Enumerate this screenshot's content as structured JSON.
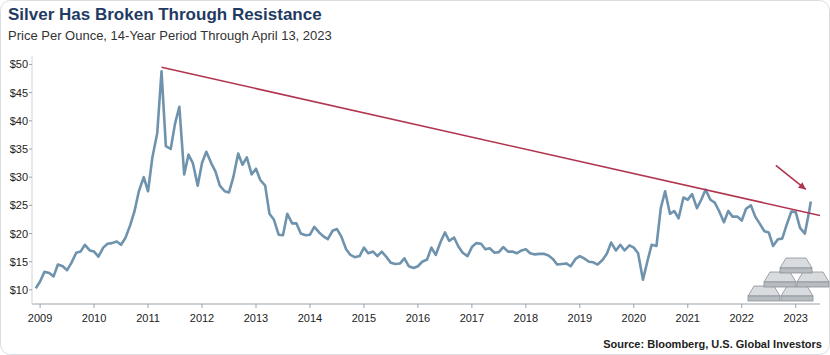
{
  "chart_data": {
    "type": "line",
    "title": "Silver Has Broken Through Resistance",
    "subtitle": "Price Per Ounce, 14-Year Period Through April 13, 2023",
    "source": "Source: Bloomberg, U.S. Global Investors",
    "color": "#6f93ad",
    "grid": false,
    "xlim": [
      2008.85,
      2023.45
    ],
    "xticks": [
      2009,
      2010,
      2011,
      2012,
      2013,
      2014,
      2015,
      2016,
      2017,
      2018,
      2019,
      2020,
      2021,
      2022,
      2023
    ],
    "ylim": [
      7.5,
      51.5
    ],
    "yticks": [
      {
        "value": 10,
        "label": "$10"
      },
      {
        "value": 15,
        "label": "$15"
      },
      {
        "value": 20,
        "label": "$20"
      },
      {
        "value": 25,
        "label": "$25"
      },
      {
        "value": 30,
        "label": "$30"
      },
      {
        "value": 35,
        "label": "$35"
      },
      {
        "value": 40,
        "label": "$40"
      },
      {
        "value": 45,
        "label": "$45"
      },
      {
        "value": 50,
        "label": "$50"
      }
    ],
    "x": [
      2008.92,
      2009,
      2009.08,
      2009.17,
      2009.25,
      2009.33,
      2009.42,
      2009.5,
      2009.58,
      2009.67,
      2009.75,
      2009.83,
      2009.92,
      2010,
      2010.08,
      2010.17,
      2010.25,
      2010.33,
      2010.42,
      2010.5,
      2010.58,
      2010.67,
      2010.75,
      2010.83,
      2010.92,
      2011,
      2011.08,
      2011.17,
      2011.25,
      2011.33,
      2011.42,
      2011.5,
      2011.58,
      2011.67,
      2011.75,
      2011.83,
      2011.92,
      2012,
      2012.08,
      2012.17,
      2012.25,
      2012.33,
      2012.42,
      2012.5,
      2012.58,
      2012.67,
      2012.75,
      2012.83,
      2012.92,
      2013,
      2013.08,
      2013.17,
      2013.25,
      2013.33,
      2013.42,
      2013.5,
      2013.58,
      2013.67,
      2013.75,
      2013.83,
      2013.92,
      2014,
      2014.08,
      2014.17,
      2014.25,
      2014.33,
      2014.42,
      2014.5,
      2014.58,
      2014.67,
      2014.75,
      2014.83,
      2014.92,
      2015,
      2015.08,
      2015.17,
      2015.25,
      2015.33,
      2015.42,
      2015.5,
      2015.58,
      2015.67,
      2015.75,
      2015.83,
      2015.92,
      2016,
      2016.08,
      2016.17,
      2016.25,
      2016.33,
      2016.42,
      2016.5,
      2016.58,
      2016.67,
      2016.75,
      2016.83,
      2016.92,
      2017,
      2017.08,
      2017.17,
      2017.25,
      2017.33,
      2017.42,
      2017.5,
      2017.58,
      2017.67,
      2017.75,
      2017.83,
      2017.92,
      2018,
      2018.08,
      2018.17,
      2018.25,
      2018.33,
      2018.42,
      2018.5,
      2018.58,
      2018.67,
      2018.75,
      2018.83,
      2018.92,
      2019,
      2019.08,
      2019.17,
      2019.25,
      2019.33,
      2019.42,
      2019.5,
      2019.58,
      2019.67,
      2019.75,
      2019.83,
      2019.92,
      2020,
      2020.08,
      2020.17,
      2020.25,
      2020.33,
      2020.42,
      2020.5,
      2020.58,
      2020.67,
      2020.75,
      2020.83,
      2020.92,
      2021,
      2021.08,
      2021.17,
      2021.25,
      2021.33,
      2021.42,
      2021.5,
      2021.58,
      2021.67,
      2021.75,
      2021.83,
      2021.92,
      2022,
      2022.08,
      2022.17,
      2022.25,
      2022.33,
      2022.42,
      2022.5,
      2022.58,
      2022.67,
      2022.75,
      2022.83,
      2022.92,
      2023,
      2023.08,
      2023.17,
      2023.22,
      2023.25,
      2023.28
    ],
    "values": [
      10.3,
      11.5,
      13.2,
      13.0,
      12.4,
      14.5,
      14.2,
      13.5,
      14.8,
      16.6,
      16.8,
      18.0,
      17.0,
      16.8,
      15.9,
      17.5,
      18.2,
      18.3,
      18.6,
      18.0,
      19.2,
      21.5,
      24.0,
      27.5,
      30.0,
      27.5,
      33.5,
      37.8,
      48.8,
      35.5,
      35.0,
      39.5,
      42.5,
      30.5,
      34.0,
      32.5,
      28.5,
      32.5,
      34.5,
      32.5,
      31.0,
      28.5,
      27.5,
      27.3,
      30.0,
      34.2,
      32.2,
      33.5,
      30.5,
      31.5,
      29.5,
      28.5,
      23.5,
      22.5,
      19.8,
      19.7,
      23.5,
      21.8,
      21.8,
      20.0,
      19.7,
      19.8,
      21.2,
      20.2,
      19.5,
      19.0,
      20.5,
      20.8,
      19.5,
      17.2,
      16.2,
      15.8,
      16.0,
      17.5,
      16.5,
      16.8,
      16.0,
      16.8,
      15.8,
      14.8,
      14.6,
      14.7,
      15.6,
      14.2,
      13.9,
      14.2,
      15.0,
      15.4,
      17.5,
      16.2,
      18.5,
      20.2,
      18.7,
      19.3,
      17.7,
      16.6,
      16.0,
      17.6,
      18.3,
      18.2,
      17.2,
      17.4,
      16.6,
      16.7,
      17.6,
      16.8,
      16.8,
      16.5,
      17.0,
      17.2,
      16.5,
      16.3,
      16.4,
      16.4,
      16.1,
      15.5,
      14.5,
      14.6,
      14.7,
      14.2,
      15.5,
      16.0,
      15.6,
      15.0,
      14.9,
      14.5,
      15.3,
      16.4,
      18.4,
      17.0,
      18.0,
      17.0,
      17.9,
      17.5,
      16.5,
      11.8,
      15.0,
      18.0,
      17.8,
      24.5,
      27.5,
      23.5,
      24.0,
      22.7,
      26.4,
      26.0,
      27.0,
      24.5,
      26.0,
      27.8,
      26.0,
      25.5,
      24.0,
      22.0,
      24.0,
      23.0,
      23.0,
      22.3,
      24.4,
      25.0,
      23.0,
      21.8,
      20.4,
      20.2,
      17.8,
      19.0,
      19.1,
      21.5,
      23.9,
      23.8,
      21.0,
      20.0,
      22.5,
      24.0,
      25.7
    ],
    "trendline": {
      "x": [
        2011.25,
        2023.45
      ],
      "values": [
        49.5,
        23.2
      ],
      "color": "#b0344e"
    }
  }
}
